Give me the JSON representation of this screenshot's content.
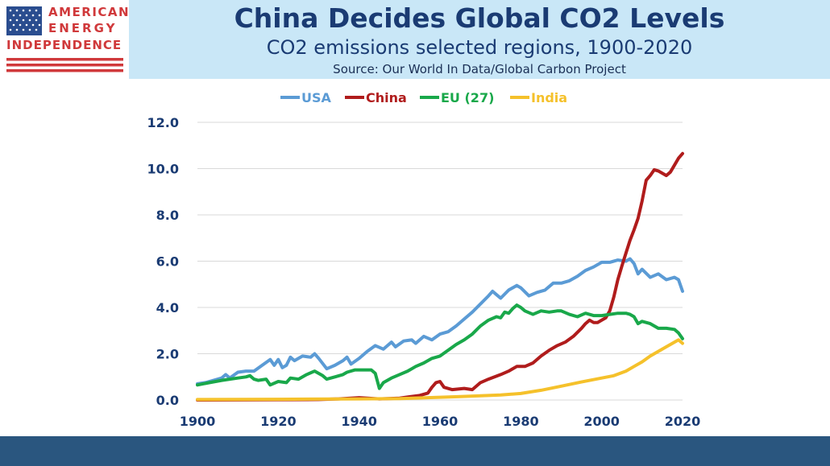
{
  "header": {
    "logo": {
      "line1": "AMERICAN",
      "line2": "ENERGY",
      "line3": "INDEPENDENCE"
    },
    "title": "China Decides Global CO2 Levels",
    "subtitle": "CO2 emissions selected regions, 1900-2020",
    "source": "Source: Our World In Data/Global Carbon Project"
  },
  "colors": {
    "header_bg": "#c9e7f7",
    "title": "#1a3b73",
    "footer": "#2a567f",
    "logo_red": "#d0393b"
  },
  "chart_data": {
    "type": "line",
    "title": "",
    "xlabel": "",
    "ylabel": "",
    "xlim": [
      1900,
      2020
    ],
    "ylim": [
      0,
      12
    ],
    "x_ticks": [
      1900,
      1920,
      1940,
      1960,
      1980,
      2000,
      2020
    ],
    "y_ticks": [
      "0.0",
      "2.0",
      "4.0",
      "6.0",
      "8.0",
      "10.0",
      "12.0"
    ],
    "grid": true,
    "legend_position": "top",
    "series": [
      {
        "name": "USA",
        "color": "#5b9bd5",
        "points": [
          [
            1900,
            0.7
          ],
          [
            1902,
            0.75
          ],
          [
            1904,
            0.85
          ],
          [
            1906,
            0.95
          ],
          [
            1907,
            1.1
          ],
          [
            1908,
            0.95
          ],
          [
            1910,
            1.2
          ],
          [
            1912,
            1.25
          ],
          [
            1914,
            1.25
          ],
          [
            1916,
            1.5
          ],
          [
            1918,
            1.75
          ],
          [
            1919,
            1.5
          ],
          [
            1920,
            1.75
          ],
          [
            1921,
            1.4
          ],
          [
            1922,
            1.5
          ],
          [
            1923,
            1.85
          ],
          [
            1924,
            1.7
          ],
          [
            1926,
            1.9
          ],
          [
            1928,
            1.85
          ],
          [
            1929,
            2.0
          ],
          [
            1930,
            1.8
          ],
          [
            1932,
            1.35
          ],
          [
            1934,
            1.5
          ],
          [
            1936,
            1.7
          ],
          [
            1937,
            1.85
          ],
          [
            1938,
            1.55
          ],
          [
            1940,
            1.8
          ],
          [
            1942,
            2.1
          ],
          [
            1944,
            2.35
          ],
          [
            1946,
            2.2
          ],
          [
            1948,
            2.5
          ],
          [
            1949,
            2.3
          ],
          [
            1951,
            2.55
          ],
          [
            1953,
            2.6
          ],
          [
            1954,
            2.45
          ],
          [
            1956,
            2.75
          ],
          [
            1958,
            2.6
          ],
          [
            1960,
            2.85
          ],
          [
            1962,
            2.95
          ],
          [
            1964,
            3.2
          ],
          [
            1966,
            3.5
          ],
          [
            1968,
            3.8
          ],
          [
            1970,
            4.15
          ],
          [
            1972,
            4.5
          ],
          [
            1973,
            4.7
          ],
          [
            1974,
            4.55
          ],
          [
            1975,
            4.4
          ],
          [
            1977,
            4.75
          ],
          [
            1979,
            4.95
          ],
          [
            1980,
            4.85
          ],
          [
            1982,
            4.5
          ],
          [
            1984,
            4.65
          ],
          [
            1986,
            4.75
          ],
          [
            1988,
            5.05
          ],
          [
            1990,
            5.05
          ],
          [
            1992,
            5.15
          ],
          [
            1994,
            5.35
          ],
          [
            1996,
            5.6
          ],
          [
            1998,
            5.75
          ],
          [
            2000,
            5.95
          ],
          [
            2002,
            5.95
          ],
          [
            2004,
            6.05
          ],
          [
            2006,
            6.0
          ],
          [
            2007,
            6.1
          ],
          [
            2008,
            5.9
          ],
          [
            2009,
            5.45
          ],
          [
            2010,
            5.65
          ],
          [
            2012,
            5.3
          ],
          [
            2014,
            5.45
          ],
          [
            2016,
            5.2
          ],
          [
            2018,
            5.3
          ],
          [
            2019,
            5.2
          ],
          [
            2020,
            4.7
          ]
        ]
      },
      {
        "name": "China",
        "color": "#b01c1c",
        "points": [
          [
            1900,
            0.0
          ],
          [
            1930,
            0.02
          ],
          [
            1935,
            0.05
          ],
          [
            1940,
            0.1
          ],
          [
            1945,
            0.05
          ],
          [
            1950,
            0.08
          ],
          [
            1955,
            0.2
          ],
          [
            1957,
            0.3
          ],
          [
            1958,
            0.55
          ],
          [
            1959,
            0.75
          ],
          [
            1960,
            0.8
          ],
          [
            1961,
            0.55
          ],
          [
            1963,
            0.45
          ],
          [
            1966,
            0.5
          ],
          [
            1968,
            0.45
          ],
          [
            1970,
            0.75
          ],
          [
            1972,
            0.9
          ],
          [
            1975,
            1.1
          ],
          [
            1977,
            1.25
          ],
          [
            1979,
            1.45
          ],
          [
            1981,
            1.45
          ],
          [
            1983,
            1.6
          ],
          [
            1985,
            1.9
          ],
          [
            1987,
            2.15
          ],
          [
            1989,
            2.35
          ],
          [
            1991,
            2.5
          ],
          [
            1993,
            2.75
          ],
          [
            1995,
            3.1
          ],
          [
            1996,
            3.3
          ],
          [
            1997,
            3.45
          ],
          [
            1998,
            3.35
          ],
          [
            1999,
            3.35
          ],
          [
            2000,
            3.45
          ],
          [
            2001,
            3.55
          ],
          [
            2002,
            3.85
          ],
          [
            2003,
            4.45
          ],
          [
            2004,
            5.2
          ],
          [
            2005,
            5.8
          ],
          [
            2006,
            6.35
          ],
          [
            2007,
            6.9
          ],
          [
            2008,
            7.35
          ],
          [
            2009,
            7.85
          ],
          [
            2010,
            8.6
          ],
          [
            2011,
            9.5
          ],
          [
            2012,
            9.7
          ],
          [
            2013,
            9.95
          ],
          [
            2014,
            9.9
          ],
          [
            2015,
            9.8
          ],
          [
            2016,
            9.7
          ],
          [
            2017,
            9.85
          ],
          [
            2018,
            10.15
          ],
          [
            2019,
            10.45
          ],
          [
            2020,
            10.65
          ]
        ]
      },
      {
        "name": "EU (27)",
        "color": "#19a84a",
        "points": [
          [
            1900,
            0.65
          ],
          [
            1903,
            0.75
          ],
          [
            1906,
            0.85
          ],
          [
            1908,
            0.9
          ],
          [
            1910,
            0.95
          ],
          [
            1912,
            1.0
          ],
          [
            1913,
            1.05
          ],
          [
            1914,
            0.9
          ],
          [
            1915,
            0.85
          ],
          [
            1917,
            0.9
          ],
          [
            1918,
            0.65
          ],
          [
            1920,
            0.8
          ],
          [
            1922,
            0.75
          ],
          [
            1923,
            0.95
          ],
          [
            1925,
            0.9
          ],
          [
            1927,
            1.1
          ],
          [
            1929,
            1.25
          ],
          [
            1931,
            1.05
          ],
          [
            1932,
            0.9
          ],
          [
            1934,
            1.0
          ],
          [
            1936,
            1.1
          ],
          [
            1937,
            1.2
          ],
          [
            1939,
            1.3
          ],
          [
            1941,
            1.3
          ],
          [
            1943,
            1.3
          ],
          [
            1944,
            1.15
          ],
          [
            1945,
            0.5
          ],
          [
            1946,
            0.75
          ],
          [
            1948,
            0.95
          ],
          [
            1950,
            1.1
          ],
          [
            1952,
            1.25
          ],
          [
            1954,
            1.45
          ],
          [
            1956,
            1.6
          ],
          [
            1958,
            1.8
          ],
          [
            1960,
            1.9
          ],
          [
            1962,
            2.15
          ],
          [
            1964,
            2.4
          ],
          [
            1966,
            2.6
          ],
          [
            1968,
            2.85
          ],
          [
            1970,
            3.2
          ],
          [
            1972,
            3.45
          ],
          [
            1974,
            3.6
          ],
          [
            1975,
            3.55
          ],
          [
            1976,
            3.8
          ],
          [
            1977,
            3.75
          ],
          [
            1978,
            3.95
          ],
          [
            1979,
            4.1
          ],
          [
            1980,
            4.0
          ],
          [
            1981,
            3.85
          ],
          [
            1983,
            3.7
          ],
          [
            1985,
            3.85
          ],
          [
            1987,
            3.8
          ],
          [
            1989,
            3.85
          ],
          [
            1990,
            3.85
          ],
          [
            1992,
            3.7
          ],
          [
            1994,
            3.6
          ],
          [
            1996,
            3.75
          ],
          [
            1998,
            3.65
          ],
          [
            2000,
            3.65
          ],
          [
            2002,
            3.7
          ],
          [
            2004,
            3.75
          ],
          [
            2006,
            3.75
          ],
          [
            2007,
            3.7
          ],
          [
            2008,
            3.6
          ],
          [
            2009,
            3.3
          ],
          [
            2010,
            3.4
          ],
          [
            2012,
            3.3
          ],
          [
            2014,
            3.1
          ],
          [
            2016,
            3.1
          ],
          [
            2018,
            3.05
          ],
          [
            2019,
            2.9
          ],
          [
            2020,
            2.65
          ]
        ]
      },
      {
        "name": "India",
        "color": "#f5c12b",
        "points": [
          [
            1900,
            0.02
          ],
          [
            1920,
            0.03
          ],
          [
            1940,
            0.05
          ],
          [
            1950,
            0.06
          ],
          [
            1960,
            0.12
          ],
          [
            1965,
            0.15
          ],
          [
            1970,
            0.18
          ],
          [
            1975,
            0.22
          ],
          [
            1980,
            0.28
          ],
          [
            1985,
            0.42
          ],
          [
            1990,
            0.6
          ],
          [
            1995,
            0.78
          ],
          [
            2000,
            0.95
          ],
          [
            2003,
            1.05
          ],
          [
            2006,
            1.25
          ],
          [
            2008,
            1.45
          ],
          [
            2010,
            1.65
          ],
          [
            2012,
            1.9
          ],
          [
            2014,
            2.1
          ],
          [
            2016,
            2.3
          ],
          [
            2018,
            2.5
          ],
          [
            2019,
            2.6
          ],
          [
            2020,
            2.45
          ]
        ]
      }
    ]
  }
}
